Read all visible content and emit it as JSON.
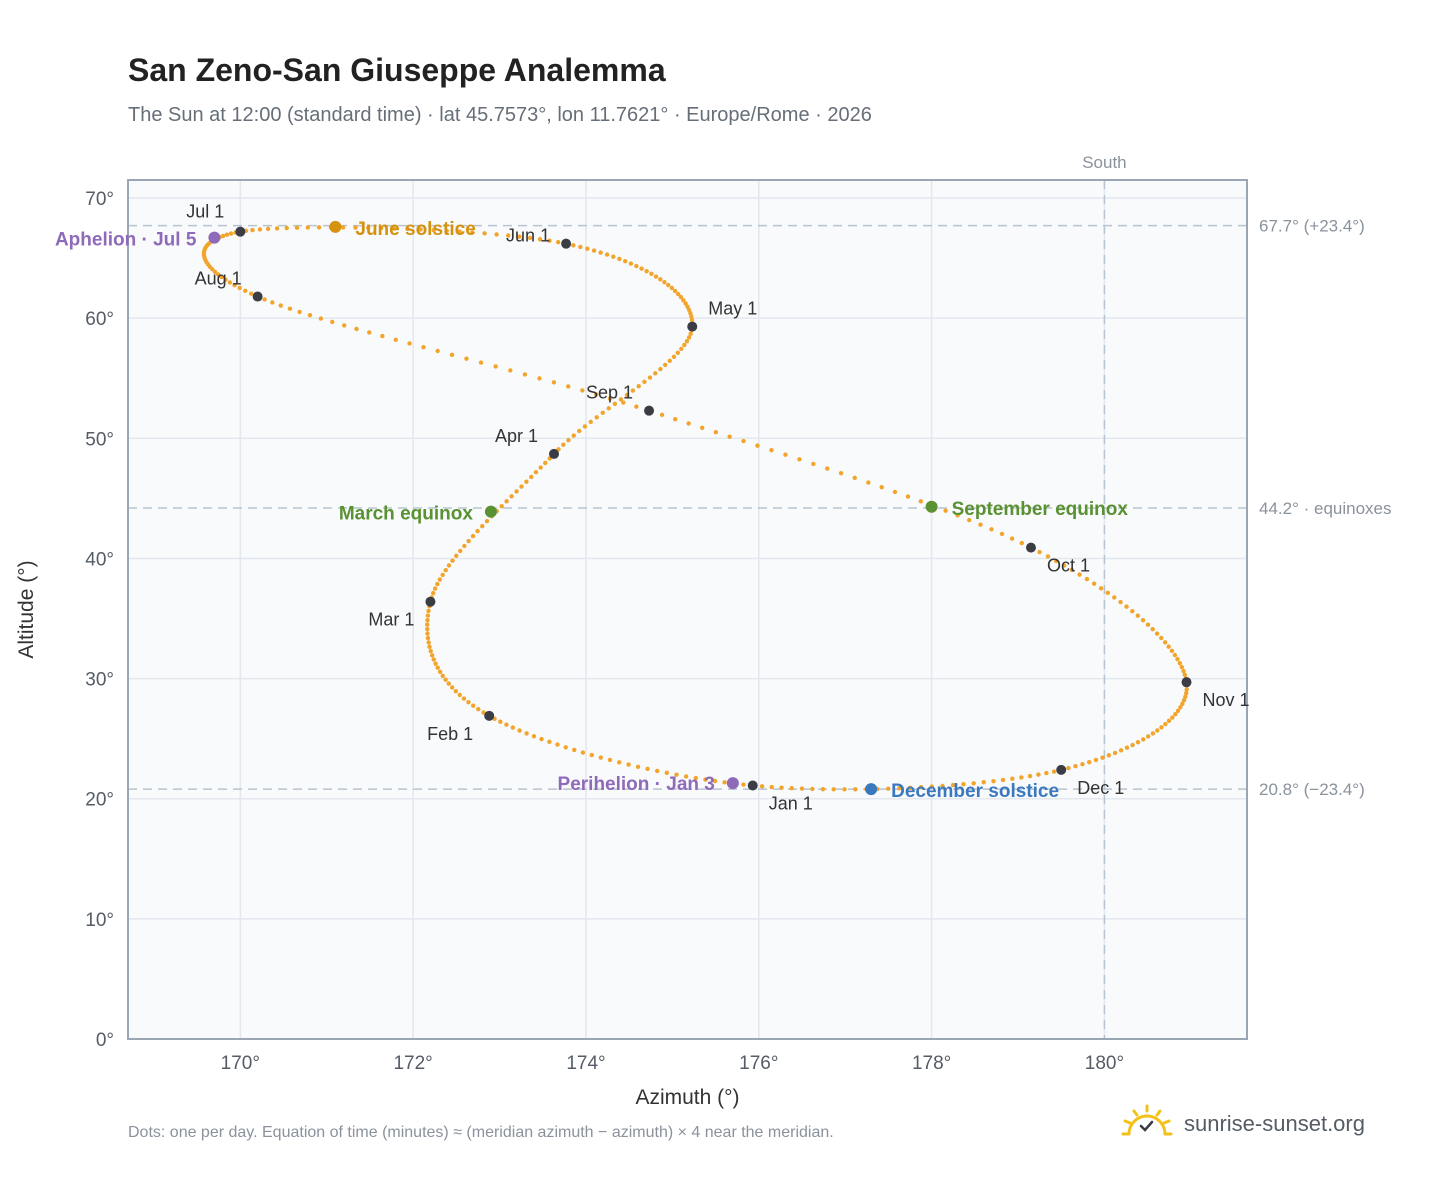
{
  "title": "San Zeno-San Giuseppe Analemma",
  "subtitle": "The Sun at 12:00 (standard time) · lat 45.7573°, lon 11.7621° · Europe/Rome · 2026",
  "footnote": "Dots: one per day. Equation of time (minutes) ≈ (meridian azimuth − azimuth) × 4 near the meridian.",
  "brand": {
    "text": "sunrise-sunset.org",
    "icon": "sun-logo-icon"
  },
  "colors": {
    "curve": "#f2a42b",
    "month_marker": "#3a3e44",
    "solstice_june": "#d4920f",
    "solstice_december": "#3a78bf",
    "equinox": "#5a9132",
    "apsis": "#8e6ab8",
    "grid": "#e3e8ee",
    "plot_bg": "#f8fafc",
    "axis_border": "#9aa6b4",
    "ref_line": "#b8c4d0"
  },
  "chart_data": {
    "type": "scatter",
    "xlabel": "Azimuth (°)",
    "ylabel": "Altitude (°)",
    "xlim": [
      168.7,
      181.65
    ],
    "ylim": [
      0,
      71.5
    ],
    "x_ticks": [
      170,
      172,
      174,
      176,
      178,
      180
    ],
    "y_ticks": [
      0,
      10,
      20,
      30,
      40,
      50,
      60,
      70
    ],
    "grid": true,
    "south_line": {
      "x": 180,
      "label": "South"
    },
    "reference_lines": [
      {
        "y": 67.7,
        "label": "67.7° (+23.4°)"
      },
      {
        "y": 44.2,
        "label": "44.2° · equinoxes"
      },
      {
        "y": 20.8,
        "label": "20.8° (−23.4°)"
      }
    ],
    "month_points": [
      {
        "label": "Jan 1",
        "az": 175.93,
        "alt": 21.1
      },
      {
        "label": "Feb 1",
        "az": 172.88,
        "alt": 26.9
      },
      {
        "label": "Mar 1",
        "az": 172.2,
        "alt": 36.4
      },
      {
        "label": "Apr 1",
        "az": 173.63,
        "alt": 48.7
      },
      {
        "label": "May 1",
        "az": 175.23,
        "alt": 59.3
      },
      {
        "label": "Jun 1",
        "az": 173.77,
        "alt": 66.2
      },
      {
        "label": "Jul 1",
        "az": 170.0,
        "alt": 67.2
      },
      {
        "label": "Aug 1",
        "az": 170.2,
        "alt": 61.8
      },
      {
        "label": "Sep 1",
        "az": 174.73,
        "alt": 52.3
      },
      {
        "label": "Oct 1",
        "az": 179.15,
        "alt": 40.9
      },
      {
        "label": "Nov 1",
        "az": 180.95,
        "alt": 29.7
      },
      {
        "label": "Dec 1",
        "az": 179.5,
        "alt": 22.4
      }
    ],
    "events": [
      {
        "label": "Perihelion · Jan 3",
        "az": 175.7,
        "alt": 21.3,
        "kind": "apsis"
      },
      {
        "label": "March equinox",
        "az": 172.9,
        "alt": 43.9,
        "kind": "equinox"
      },
      {
        "label": "June solstice",
        "az": 171.1,
        "alt": 67.6,
        "kind": "solstice_june"
      },
      {
        "label": "Aphelion · Jul 5",
        "az": 169.7,
        "alt": 66.7,
        "kind": "apsis"
      },
      {
        "label": "September equinox",
        "az": 178.0,
        "alt": 44.3,
        "kind": "equinox"
      },
      {
        "label": "December solstice",
        "az": 177.3,
        "alt": 20.8,
        "kind": "solstice_december"
      }
    ],
    "daily_points": "one per day, 2026"
  }
}
